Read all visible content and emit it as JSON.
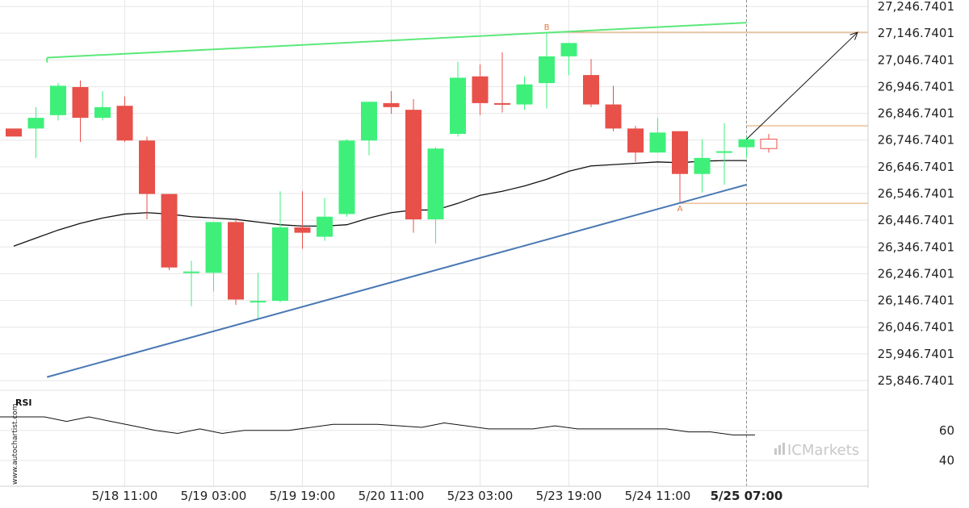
{
  "watermark": "www.autochartist.com",
  "brand": "ICMarkets",
  "colors": {
    "bull": "#3ef07a",
    "bear": "#e8504a",
    "upper_line": "#5ce87a",
    "lower_line": "#4a78b4",
    "level": "#e0a060",
    "ma": "#111111",
    "rsi": "#111111",
    "grid": "#e6e6e6"
  },
  "chart_data": [
    {
      "type": "candlestick",
      "title": "",
      "y_ticks": [
        "27,246.7401",
        "27,146.7401",
        "27,046.7401",
        "26,946.7401",
        "26,846.7401",
        "26,746.7401",
        "26,646.7401",
        "26,546.7401",
        "26,446.7401",
        "26,346.7401",
        "26,246.7401",
        "26,146.7401",
        "26,046.7401",
        "25,946.7401",
        "25,846.7401"
      ],
      "y_tick_values": [
        27246.7401,
        27146.7401,
        27046.7401,
        26946.7401,
        26846.7401,
        26746.7401,
        26646.7401,
        26546.7401,
        26446.7401,
        26346.7401,
        26246.7401,
        26146.7401,
        26046.7401,
        25946.7401,
        25846.7401
      ],
      "x_ticks": [
        {
          "label": "5/18 11:00",
          "index": 5,
          "bold": false
        },
        {
          "label": "5/19 03:00",
          "index": 9,
          "bold": false
        },
        {
          "label": "5/19 19:00",
          "index": 13,
          "bold": false
        },
        {
          "label": "5/20 11:00",
          "index": 17,
          "bold": false
        },
        {
          "label": "5/23 03:00",
          "index": 21,
          "bold": false
        },
        {
          "label": "5/23 19:00",
          "index": 25,
          "bold": false
        },
        {
          "label": "5/24 11:00",
          "index": 29,
          "bold": false
        },
        {
          "label": "5/25 07:00",
          "index": 33,
          "bold": true
        }
      ],
      "candles": [
        {
          "o": 26790,
          "h": 26790,
          "l": 26760,
          "c": 26760
        },
        {
          "o": 26790,
          "h": 26870,
          "l": 26680,
          "c": 26830
        },
        {
          "o": 26840,
          "h": 26960,
          "l": 26820,
          "c": 26950
        },
        {
          "o": 26945,
          "h": 26970,
          "l": 26740,
          "c": 26830
        },
        {
          "o": 26830,
          "h": 26930,
          "l": 26820,
          "c": 26870
        },
        {
          "o": 26875,
          "h": 26910,
          "l": 26740,
          "c": 26745
        },
        {
          "o": 26745,
          "h": 26760,
          "l": 26450,
          "c": 26545
        },
        {
          "o": 26545,
          "h": 26545,
          "l": 26260,
          "c": 26270
        },
        {
          "o": 26255,
          "h": 26295,
          "l": 26125,
          "c": 26255
        },
        {
          "o": 26250,
          "h": 26440,
          "l": 26180,
          "c": 26440
        },
        {
          "o": 26440,
          "h": 26455,
          "l": 26130,
          "c": 26150
        },
        {
          "o": 26145,
          "h": 26250,
          "l": 26080,
          "c": 26145
        },
        {
          "o": 26145,
          "h": 26555,
          "l": 26140,
          "c": 26420
        },
        {
          "o": 26420,
          "h": 26555,
          "l": 26340,
          "c": 26400
        },
        {
          "o": 26385,
          "h": 26530,
          "l": 26370,
          "c": 26460
        },
        {
          "o": 26470,
          "h": 26750,
          "l": 26460,
          "c": 26745
        },
        {
          "o": 26745,
          "h": 26890,
          "l": 26690,
          "c": 26890
        },
        {
          "o": 26885,
          "h": 26930,
          "l": 26845,
          "c": 26870
        },
        {
          "o": 26860,
          "h": 26900,
          "l": 26400,
          "c": 26450
        },
        {
          "o": 26450,
          "h": 26720,
          "l": 26360,
          "c": 26715
        },
        {
          "o": 26770,
          "h": 27040,
          "l": 26760,
          "c": 26980
        },
        {
          "o": 26985,
          "h": 27030,
          "l": 26840,
          "c": 26885
        },
        {
          "o": 26885,
          "h": 27075,
          "l": 26850,
          "c": 26880
        },
        {
          "o": 26880,
          "h": 26985,
          "l": 26860,
          "c": 26955
        },
        {
          "o": 26960,
          "h": 27150,
          "l": 26865,
          "c": 27060
        },
        {
          "o": 27060,
          "h": 27110,
          "l": 26990,
          "c": 27110
        },
        {
          "o": 26990,
          "h": 27050,
          "l": 26870,
          "c": 26880
        },
        {
          "o": 26880,
          "h": 26950,
          "l": 26780,
          "c": 26790
        },
        {
          "o": 26790,
          "h": 26800,
          "l": 26665,
          "c": 26700
        },
        {
          "o": 26700,
          "h": 26830,
          "l": 26700,
          "c": 26775
        },
        {
          "o": 26780,
          "h": 26780,
          "l": 26510,
          "c": 26620
        },
        {
          "o": 26620,
          "h": 26750,
          "l": 26550,
          "c": 26680
        },
        {
          "o": 26705,
          "h": 26810,
          "l": 26580,
          "c": 26705
        },
        {
          "o": 26720,
          "h": 26760,
          "l": 26680,
          "c": 26750
        }
      ],
      "projected_candle": {
        "o": 26715,
        "h": 26770,
        "l": 26700,
        "c": 26750
      },
      "moving_average": [
        26350,
        26380,
        26410,
        26435,
        26455,
        26470,
        26475,
        26470,
        26460,
        26455,
        26450,
        26440,
        26430,
        26425,
        26425,
        26430,
        26455,
        26475,
        26485,
        26485,
        26510,
        26540,
        26555,
        26575,
        26600,
        26630,
        26650,
        26655,
        26660,
        26665,
        26662,
        26668,
        26670,
        26670
      ],
      "pattern": {
        "name": "ascending triangle",
        "point_labels": [
          "A",
          "B"
        ],
        "point_A": {
          "index": 30,
          "value": 26510
        },
        "point_B": {
          "index": 24,
          "value": 27150
        },
        "upper_trend": {
          "from_index": 1.5,
          "from_value": 27055,
          "to_index": 33,
          "to_value": 27186
        },
        "lower_trend": {
          "from_index": 1.5,
          "from_value": 25860,
          "to_index": 33,
          "to_value": 26580
        },
        "resistance_level": 27150,
        "support_level": 26510,
        "entry_level": 26800,
        "forecast_arrow": {
          "from_index": 33,
          "from_value": 26750,
          "to_index": 38,
          "to_value": 27150
        }
      }
    },
    {
      "type": "line",
      "title": "RSI",
      "y_ticks": [
        "60",
        "40"
      ],
      "y_tick_values": [
        60,
        40
      ],
      "values": [
        69,
        69,
        69,
        66,
        69,
        66,
        63,
        60,
        58,
        61,
        58,
        60,
        60,
        60,
        62,
        64,
        64,
        64,
        63,
        62,
        65,
        63,
        61,
        61,
        61,
        63,
        61,
        61,
        61,
        61,
        61,
        59,
        59,
        57,
        57
      ]
    }
  ]
}
